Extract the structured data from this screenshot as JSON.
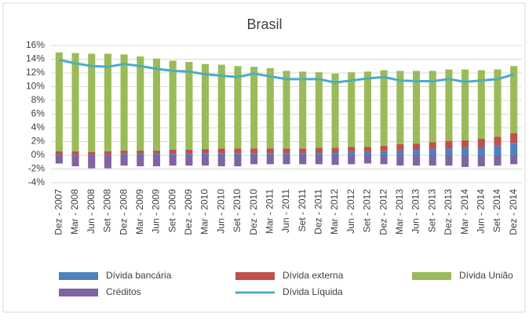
{
  "chart_data": {
    "type": "bar",
    "stacked": true,
    "title": "Brasil",
    "categories": [
      "Dez - 2007",
      "Mar - 2008",
      "Jun - 2008",
      "Set - 2008",
      "Dez - 2008",
      "Mar - 2009",
      "Jun - 2009",
      "Set - 2009",
      "Dez - 2009",
      "Mar - 2010",
      "Jun - 2010",
      "Set - 2010",
      "Dez - 2010",
      "Mar - 2011",
      "Jun - 2011",
      "Set - 2011",
      "Dez - 2011",
      "Mar - 2012",
      "Jun - 2012",
      "Set - 2012",
      "Dez - 2012",
      "Mar - 2013",
      "Jun - 2013",
      "Set - 2013",
      "Dez - 2013",
      "Mar - 2014",
      "Jun - 2014",
      "Set - 2014",
      "Dez - 2014"
    ],
    "series": [
      {
        "name": "Dívida bancária",
        "type": "bar",
        "color": "#4f81bd",
        "values": [
          0.1,
          0.1,
          0.1,
          0.1,
          0.2,
          0.2,
          0.2,
          0.2,
          0.2,
          0.3,
          0.3,
          0.3,
          0.3,
          0.3,
          0.3,
          0.3,
          0.4,
          0.4,
          0.5,
          0.5,
          0.6,
          0.7,
          0.8,
          0.9,
          1.0,
          1.1,
          1.2,
          1.4,
          1.8
        ]
      },
      {
        "name": "Dívida externa",
        "type": "bar",
        "color": "#c0504d",
        "values": [
          0.5,
          0.5,
          0.4,
          0.5,
          0.5,
          0.5,
          0.5,
          0.6,
          0.6,
          0.6,
          0.7,
          0.7,
          0.7,
          0.7,
          0.7,
          0.7,
          0.7,
          0.7,
          0.7,
          0.7,
          0.8,
          0.9,
          0.9,
          1.0,
          1.1,
          1.1,
          1.2,
          1.3,
          1.4
        ]
      },
      {
        "name": "Dívida União",
        "type": "bar",
        "color": "#9bbb59",
        "values": [
          14.4,
          14.3,
          14.3,
          14.2,
          14.0,
          13.7,
          13.4,
          13.0,
          12.8,
          12.4,
          12.2,
          12.0,
          11.9,
          11.7,
          11.3,
          11.2,
          11.0,
          10.8,
          10.9,
          11.0,
          11.0,
          10.7,
          10.6,
          10.4,
          10.4,
          10.3,
          10.0,
          9.8,
          9.8
        ]
      },
      {
        "name": "Créditos",
        "type": "bar",
        "color": "#8064a2",
        "values": [
          -1.2,
          -1.6,
          -1.9,
          -1.9,
          -1.5,
          -1.6,
          -1.6,
          -1.5,
          -1.5,
          -1.5,
          -1.6,
          -1.6,
          -1.3,
          -1.3,
          -1.3,
          -1.3,
          -1.3,
          -1.4,
          -1.3,
          -1.2,
          -1.3,
          -1.5,
          -1.5,
          -1.5,
          -1.5,
          -1.7,
          -1.6,
          -1.5,
          -1.3
        ]
      },
      {
        "name": "Dívida Líquida",
        "type": "line",
        "color": "#4bacc6",
        "values": [
          13.9,
          13.4,
          13.0,
          12.9,
          13.3,
          13.0,
          12.6,
          12.3,
          12.2,
          11.8,
          11.6,
          11.4,
          11.9,
          11.5,
          11.1,
          11.1,
          11.1,
          10.6,
          10.9,
          11.2,
          11.4,
          10.9,
          10.8,
          10.8,
          11.1,
          10.7,
          10.9,
          11.1,
          11.8
        ]
      }
    ],
    "ylim": [
      -4,
      16
    ],
    "yticks": [
      {
        "value": -4,
        "label": "-4%"
      },
      {
        "value": -2,
        "label": "-2%"
      },
      {
        "value": 0,
        "label": "0%"
      },
      {
        "value": 2,
        "label": "2%"
      },
      {
        "value": 4,
        "label": "4%"
      },
      {
        "value": 6,
        "label": "6%"
      },
      {
        "value": 8,
        "label": "8%"
      },
      {
        "value": 10,
        "label": "10%"
      },
      {
        "value": 12,
        "label": "12%"
      },
      {
        "value": 14,
        "label": "14%"
      },
      {
        "value": 16,
        "label": "16%"
      }
    ],
    "grid": true,
    "legend": "bottom"
  }
}
